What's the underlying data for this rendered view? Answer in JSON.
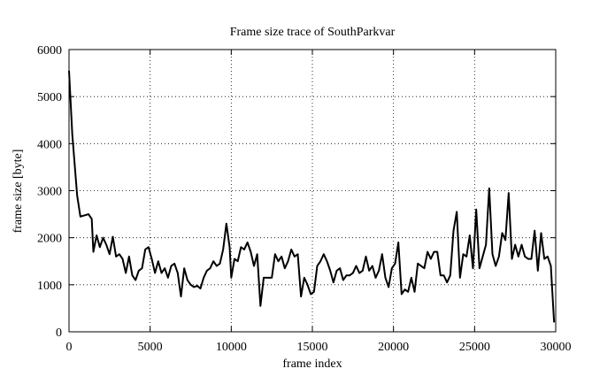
{
  "chart_data": {
    "type": "line",
    "title": "Frame size trace of SouthParkvar",
    "x_label": "frame index",
    "y_label": "frame size [byte]",
    "color": "#000000",
    "grid": true,
    "xlim": [
      0,
      30000
    ],
    "xticks": [
      0,
      5000,
      10000,
      15000,
      20000,
      25000,
      30000
    ],
    "ylim": [
      0,
      6000
    ],
    "yticks": [
      0,
      1000,
      2000,
      3000,
      4000,
      5000,
      6000
    ],
    "x": [
      0,
      200,
      500,
      700,
      1000,
      1200,
      1400,
      1500,
      1700,
      1900,
      2100,
      2300,
      2500,
      2700,
      2900,
      3100,
      3300,
      3500,
      3700,
      3900,
      4100,
      4300,
      4500,
      4700,
      4900,
      5100,
      5300,
      5500,
      5700,
      5900,
      6100,
      6300,
      6500,
      6700,
      6900,
      7100,
      7300,
      7500,
      7700,
      7900,
      8100,
      8300,
      8500,
      8700,
      8900,
      9100,
      9300,
      9500,
      9700,
      9900,
      10000,
      10200,
      10400,
      10600,
      10800,
      11000,
      11200,
      11400,
      11600,
      11800,
      12000,
      12200,
      12500,
      12700,
      12900,
      13100,
      13300,
      13500,
      13700,
      13900,
      14100,
      14300,
      14500,
      14700,
      14900,
      15100,
      15300,
      15500,
      15700,
      15900,
      16100,
      16300,
      16500,
      16700,
      16900,
      17100,
      17300,
      17500,
      17700,
      17900,
      18100,
      18300,
      18500,
      18700,
      18900,
      19100,
      19300,
      19500,
      19700,
      19900,
      20100,
      20300,
      20500,
      20700,
      20900,
      21100,
      21300,
      21500,
      21700,
      21900,
      22100,
      22300,
      22500,
      22700,
      22900,
      23100,
      23300,
      23500,
      23700,
      23900,
      24100,
      24300,
      24500,
      24700,
      24900,
      25100,
      25300,
      25500,
      25700,
      25900,
      26100,
      26300,
      26500,
      26700,
      26900,
      27100,
      27300,
      27500,
      27700,
      27900,
      28100,
      28300,
      28500,
      28700,
      28900,
      29100,
      29300,
      29500,
      29700,
      29900
    ],
    "values": [
      5550,
      4200,
      2900,
      2450,
      2480,
      2500,
      2400,
      1700,
      2050,
      1800,
      2000,
      1850,
      1650,
      2020,
      1600,
      1650,
      1550,
      1250,
      1600,
      1200,
      1100,
      1300,
      1350,
      1750,
      1800,
      1550,
      1250,
      1500,
      1250,
      1350,
      1150,
      1400,
      1450,
      1250,
      750,
      1350,
      1100,
      1000,
      950,
      980,
      920,
      1150,
      1300,
      1350,
      1500,
      1400,
      1450,
      1750,
      2300,
      1800,
      1150,
      1550,
      1500,
      1800,
      1750,
      1900,
      1700,
      1400,
      1650,
      550,
      1150,
      1150,
      1150,
      1650,
      1500,
      1600,
      1350,
      1500,
      1750,
      1600,
      1650,
      750,
      1150,
      1000,
      800,
      850,
      1400,
      1500,
      1650,
      1500,
      1300,
      1050,
      1300,
      1350,
      1100,
      1200,
      1200,
      1250,
      1400,
      1250,
      1300,
      1600,
      1300,
      1400,
      1150,
      1300,
      1650,
      1150,
      950,
      1350,
      1450,
      1900,
      800,
      900,
      850,
      1150,
      850,
      1450,
      1400,
      1350,
      1700,
      1550,
      1700,
      1700,
      1200,
      1200,
      1050,
      1200,
      2150,
      2550,
      1150,
      1650,
      1600,
      2050,
      1350,
      2600,
      1350,
      1600,
      1850,
      3050,
      1650,
      1400,
      1600,
      2100,
      1950,
      2950,
      1550,
      1850,
      1600,
      1850,
      1600,
      1550,
      1550,
      2150,
      1300,
      2100,
      1550,
      1600,
      1400,
      200
    ]
  }
}
